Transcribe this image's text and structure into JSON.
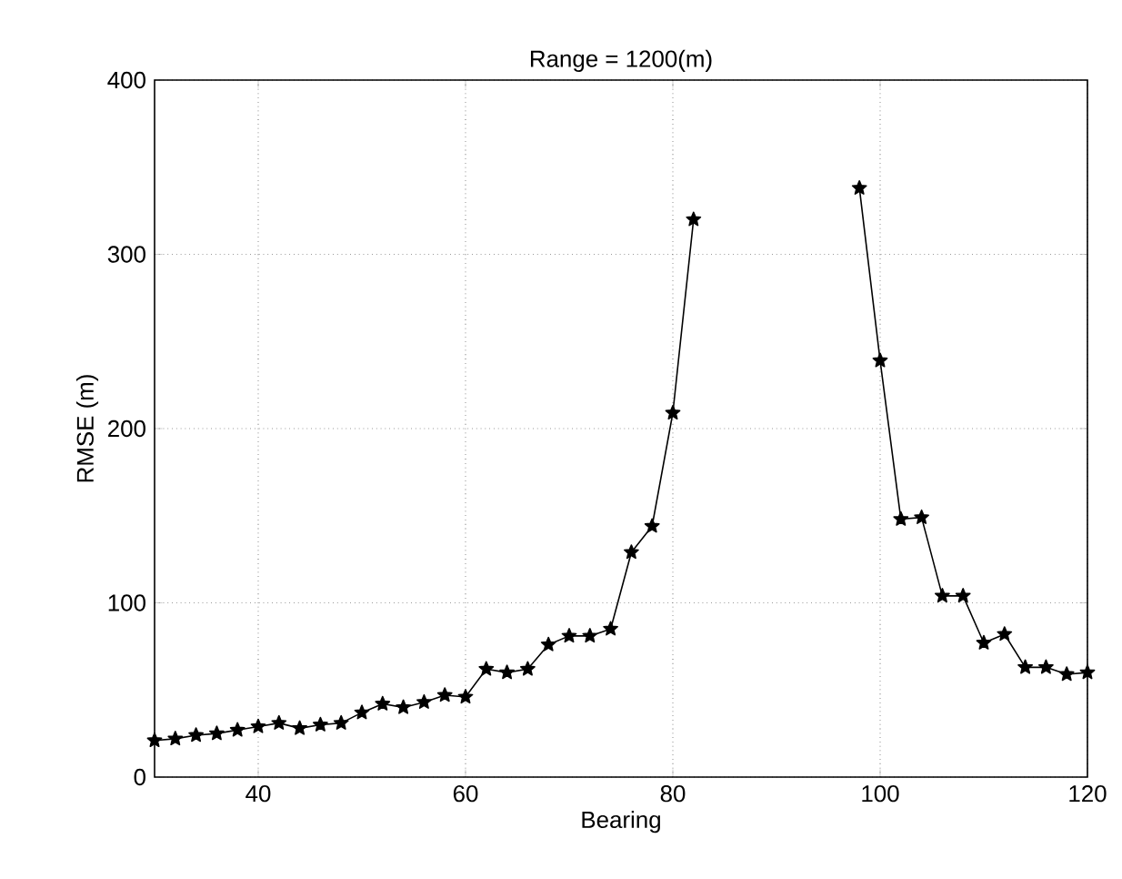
{
  "chart_data": {
    "type": "line",
    "title": "Range = 1200(m)",
    "xlabel": "Bearing",
    "ylabel": "RMSE (m)",
    "x": [
      30,
      32,
      34,
      36,
      38,
      40,
      42,
      44,
      46,
      48,
      50,
      52,
      54,
      56,
      58,
      60,
      62,
      64,
      66,
      68,
      70,
      72,
      74,
      76,
      78,
      80,
      82,
      84,
      86,
      88,
      90,
      92,
      94,
      96,
      98,
      100,
      102,
      104,
      106,
      108,
      110,
      112,
      114,
      116,
      118,
      120
    ],
    "series": [
      {
        "color": "#000000",
        "values": [
          21,
          22,
          24,
          25,
          27,
          29,
          31,
          28,
          30,
          31,
          37,
          42,
          40,
          43,
          47,
          46,
          62,
          60,
          62,
          76,
          81,
          81,
          85,
          129,
          144,
          209,
          320,
          null,
          null,
          null,
          null,
          null,
          null,
          null,
          338,
          239,
          148,
          149,
          104,
          104,
          77,
          82,
          63,
          63,
          59,
          60
        ]
      }
    ],
    "xlim": [
      30,
      120
    ],
    "ylim": [
      0,
      400
    ],
    "xticks": [
      40,
      60,
      80,
      100,
      120
    ],
    "yticks": [
      0,
      100,
      200,
      300,
      400
    ],
    "grid": true,
    "marker": "star",
    "line_style": "solid"
  }
}
